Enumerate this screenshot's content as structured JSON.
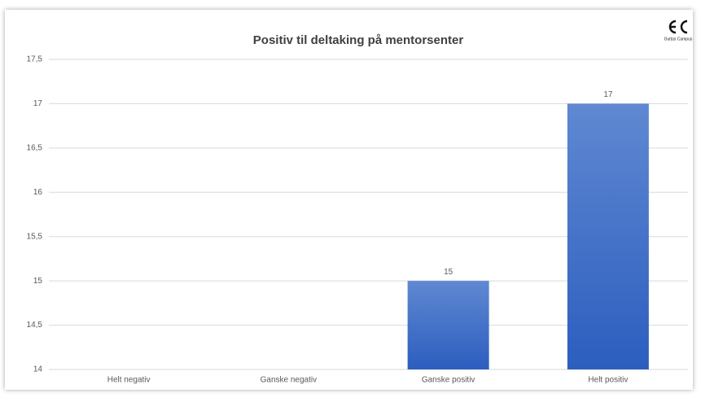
{
  "chart_data": {
    "type": "bar",
    "title": "Positiv til deltaking på mentorsenter",
    "logo_text": "Guttas Campus",
    "categories": [
      "Helt negativ",
      "Ganske negativ",
      "Ganske positiv",
      "Helt positiv"
    ],
    "values": [
      null,
      null,
      15,
      17
    ],
    "color": "#3a68c6",
    "ylim": [
      14,
      17.5
    ],
    "yticks": [
      14,
      {
        "value": 14.5,
        "label": "14,5"
      },
      15,
      {
        "value": 15.5,
        "label": "15,5"
      },
      16,
      {
        "value": 16.5,
        "label": "16,5"
      },
      17,
      {
        "value": 17.5,
        "label": "17,5"
      }
    ],
    "grid": true
  }
}
